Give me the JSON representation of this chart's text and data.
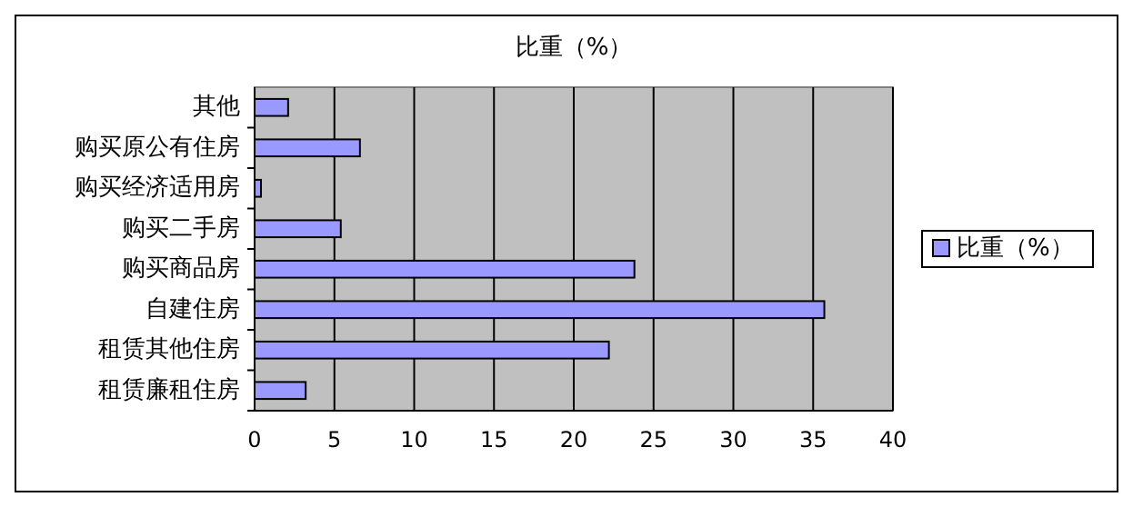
{
  "chart_data": {
    "type": "bar",
    "orientation": "horizontal",
    "title": "比重（%）",
    "categories": [
      "其他",
      "购买原公有住房",
      "购买经济适用房",
      "购买二手房",
      "购买商品房",
      "自建住房",
      "租赁其他住房",
      "租赁廉租住房"
    ],
    "series": [
      {
        "name": "比重（%）",
        "color": "#9999ff",
        "values": [
          2.1,
          6.6,
          0.4,
          5.4,
          23.8,
          35.7,
          22.2,
          3.2
        ]
      }
    ],
    "xlim": [
      0,
      40
    ],
    "xticks": [
      0,
      5,
      10,
      15,
      20,
      25,
      30,
      35,
      40
    ],
    "grid": "x",
    "legend": "right"
  }
}
